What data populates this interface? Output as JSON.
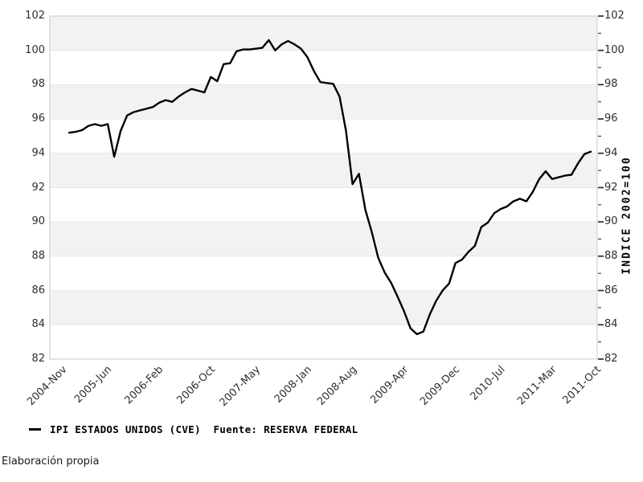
{
  "chart_data": {
    "type": "line",
    "title": "",
    "xlabel": "",
    "ylabel_right": "INDICE 2002=100",
    "ylim": [
      82,
      102
    ],
    "y_major_ticks": [
      102,
      100,
      98,
      96,
      94,
      92,
      90,
      88,
      86,
      84,
      82
    ],
    "y_minor_ticks": [
      101,
      99,
      97,
      95,
      93,
      91,
      89,
      87,
      85,
      83
    ],
    "grid": "horizontal-bands",
    "legend_position": "bottom-left",
    "x_domain_months": 85,
    "x_ticks": [
      {
        "label": "2004-Nov",
        "t": 1
      },
      {
        "label": "2005-Jun",
        "t": 8
      },
      {
        "label": "2006-Feb",
        "t": 16
      },
      {
        "label": "2006-Oct",
        "t": 24
      },
      {
        "label": "2007-May",
        "t": 31
      },
      {
        "label": "2008-Jan",
        "t": 39
      },
      {
        "label": "2008-Aug",
        "t": 46
      },
      {
        "label": "2009-Apr",
        "t": 54
      },
      {
        "label": "2009-Dec",
        "t": 62
      },
      {
        "label": "2010-Jul",
        "t": 69
      },
      {
        "label": "2011-Mar",
        "t": 77
      },
      {
        "label": "2011-Oct",
        "t": 84
      }
    ],
    "series": [
      {
        "name": "IPI ESTADOS UNIDOS (CVE)",
        "frequency": "monthly",
        "start": "2005-01",
        "end": "2011-10",
        "start_t": 3,
        "color": "#000000",
        "values": [
          95.2,
          95.25,
          95.35,
          95.6,
          95.7,
          95.6,
          95.7,
          93.8,
          95.3,
          96.2,
          96.4,
          96.5,
          96.6,
          96.7,
          96.95,
          97.1,
          97.0,
          97.3,
          97.55,
          97.75,
          97.65,
          97.55,
          98.45,
          98.2,
          99.2,
          99.25,
          99.95,
          100.05,
          100.05,
          100.1,
          100.15,
          100.6,
          100.0,
          100.35,
          100.55,
          100.35,
          100.1,
          99.6,
          98.8,
          98.15,
          98.1,
          98.05,
          97.3,
          95.3,
          92.2,
          92.8,
          90.7,
          89.4,
          87.9,
          87.05,
          86.45,
          85.65,
          84.8,
          83.8,
          83.45,
          83.6,
          84.6,
          85.4,
          86.0,
          86.4,
          87.6,
          87.8,
          88.25,
          88.6,
          89.7,
          89.95,
          90.5,
          90.75,
          90.9,
          91.2,
          91.35,
          91.2,
          91.75,
          92.5,
          92.95,
          92.5,
          92.6,
          92.7,
          92.75,
          93.4,
          93.95,
          94.1
        ]
      }
    ],
    "colors": {
      "line": "#000000",
      "band_fill": "#f2f2f2",
      "band_edge": "#e6e6e6",
      "plot_border": "#c9c9c9",
      "tick_text": "#2e2e2e",
      "tick_mark": "#222222"
    }
  },
  "legend": {
    "label": "IPI ESTADOS UNIDOS (CVE)  Fuente: RESERVA FEDERAL"
  },
  "footer": {
    "credit": "Elaboración propia"
  }
}
